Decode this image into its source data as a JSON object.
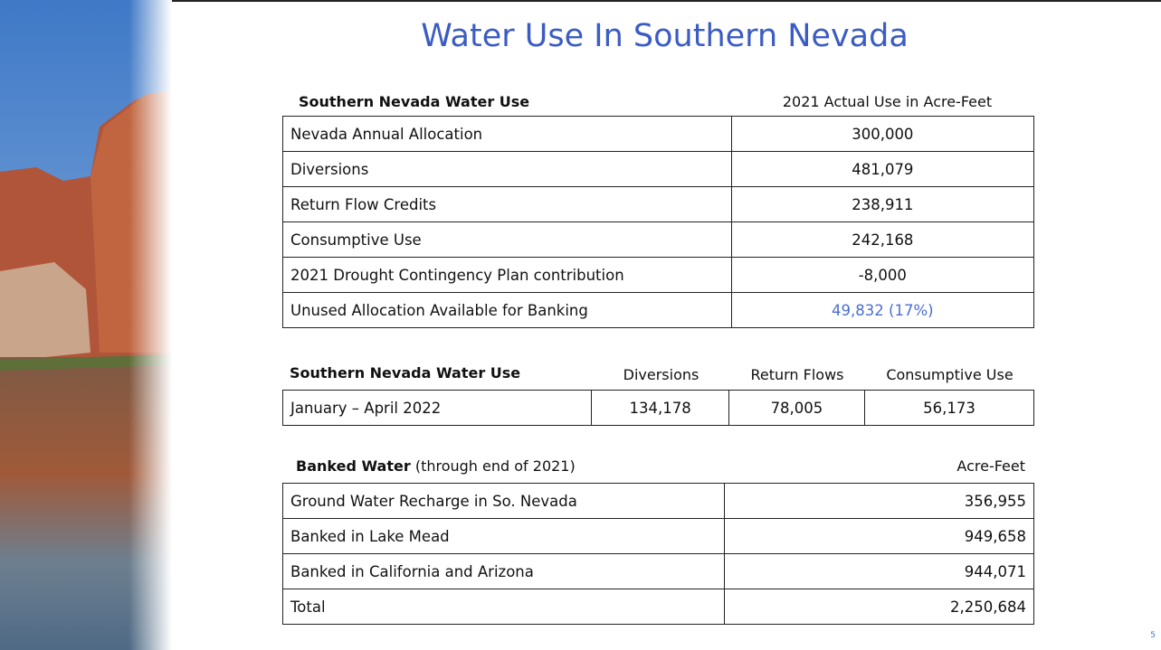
{
  "title": "Water Use In Southern Nevada",
  "table_annual": {
    "header": [
      "Southern Nevada Water Use",
      "2021 Actual Use in Acre-Feet"
    ],
    "rows": [
      [
        "Nevada Annual Allocation",
        "300,000"
      ],
      [
        "Diversions",
        "481,079"
      ],
      [
        "Return Flow Credits",
        "238,911"
      ],
      [
        "Consumptive Use",
        "242,168"
      ],
      [
        "2021 Drought Contingency Plan contribution",
        "-8,000"
      ],
      [
        "Unused Allocation Available for Banking",
        "49,832 (17%)"
      ]
    ]
  },
  "table_2022": {
    "header": [
      "Southern Nevada Water Use",
      "Diversions",
      "Return Flows",
      "Consumptive Use"
    ],
    "rows": [
      [
        "January – April 2022",
        "134,178",
        "78,005",
        "56,173"
      ]
    ]
  },
  "table_banked": {
    "header": {
      "label_bold": "Banked Water",
      "label_note": "(through end of 2021)",
      "unit": "Acre-Feet"
    },
    "rows": [
      [
        "Ground Water Recharge in So. Nevada",
        "356,955"
      ],
      [
        "Banked in Lake Mead",
        "949,658"
      ],
      [
        "Banked in California and Arizona",
        "944,071"
      ],
      [
        "Total",
        "2,250,684"
      ]
    ]
  },
  "page_number": "5"
}
